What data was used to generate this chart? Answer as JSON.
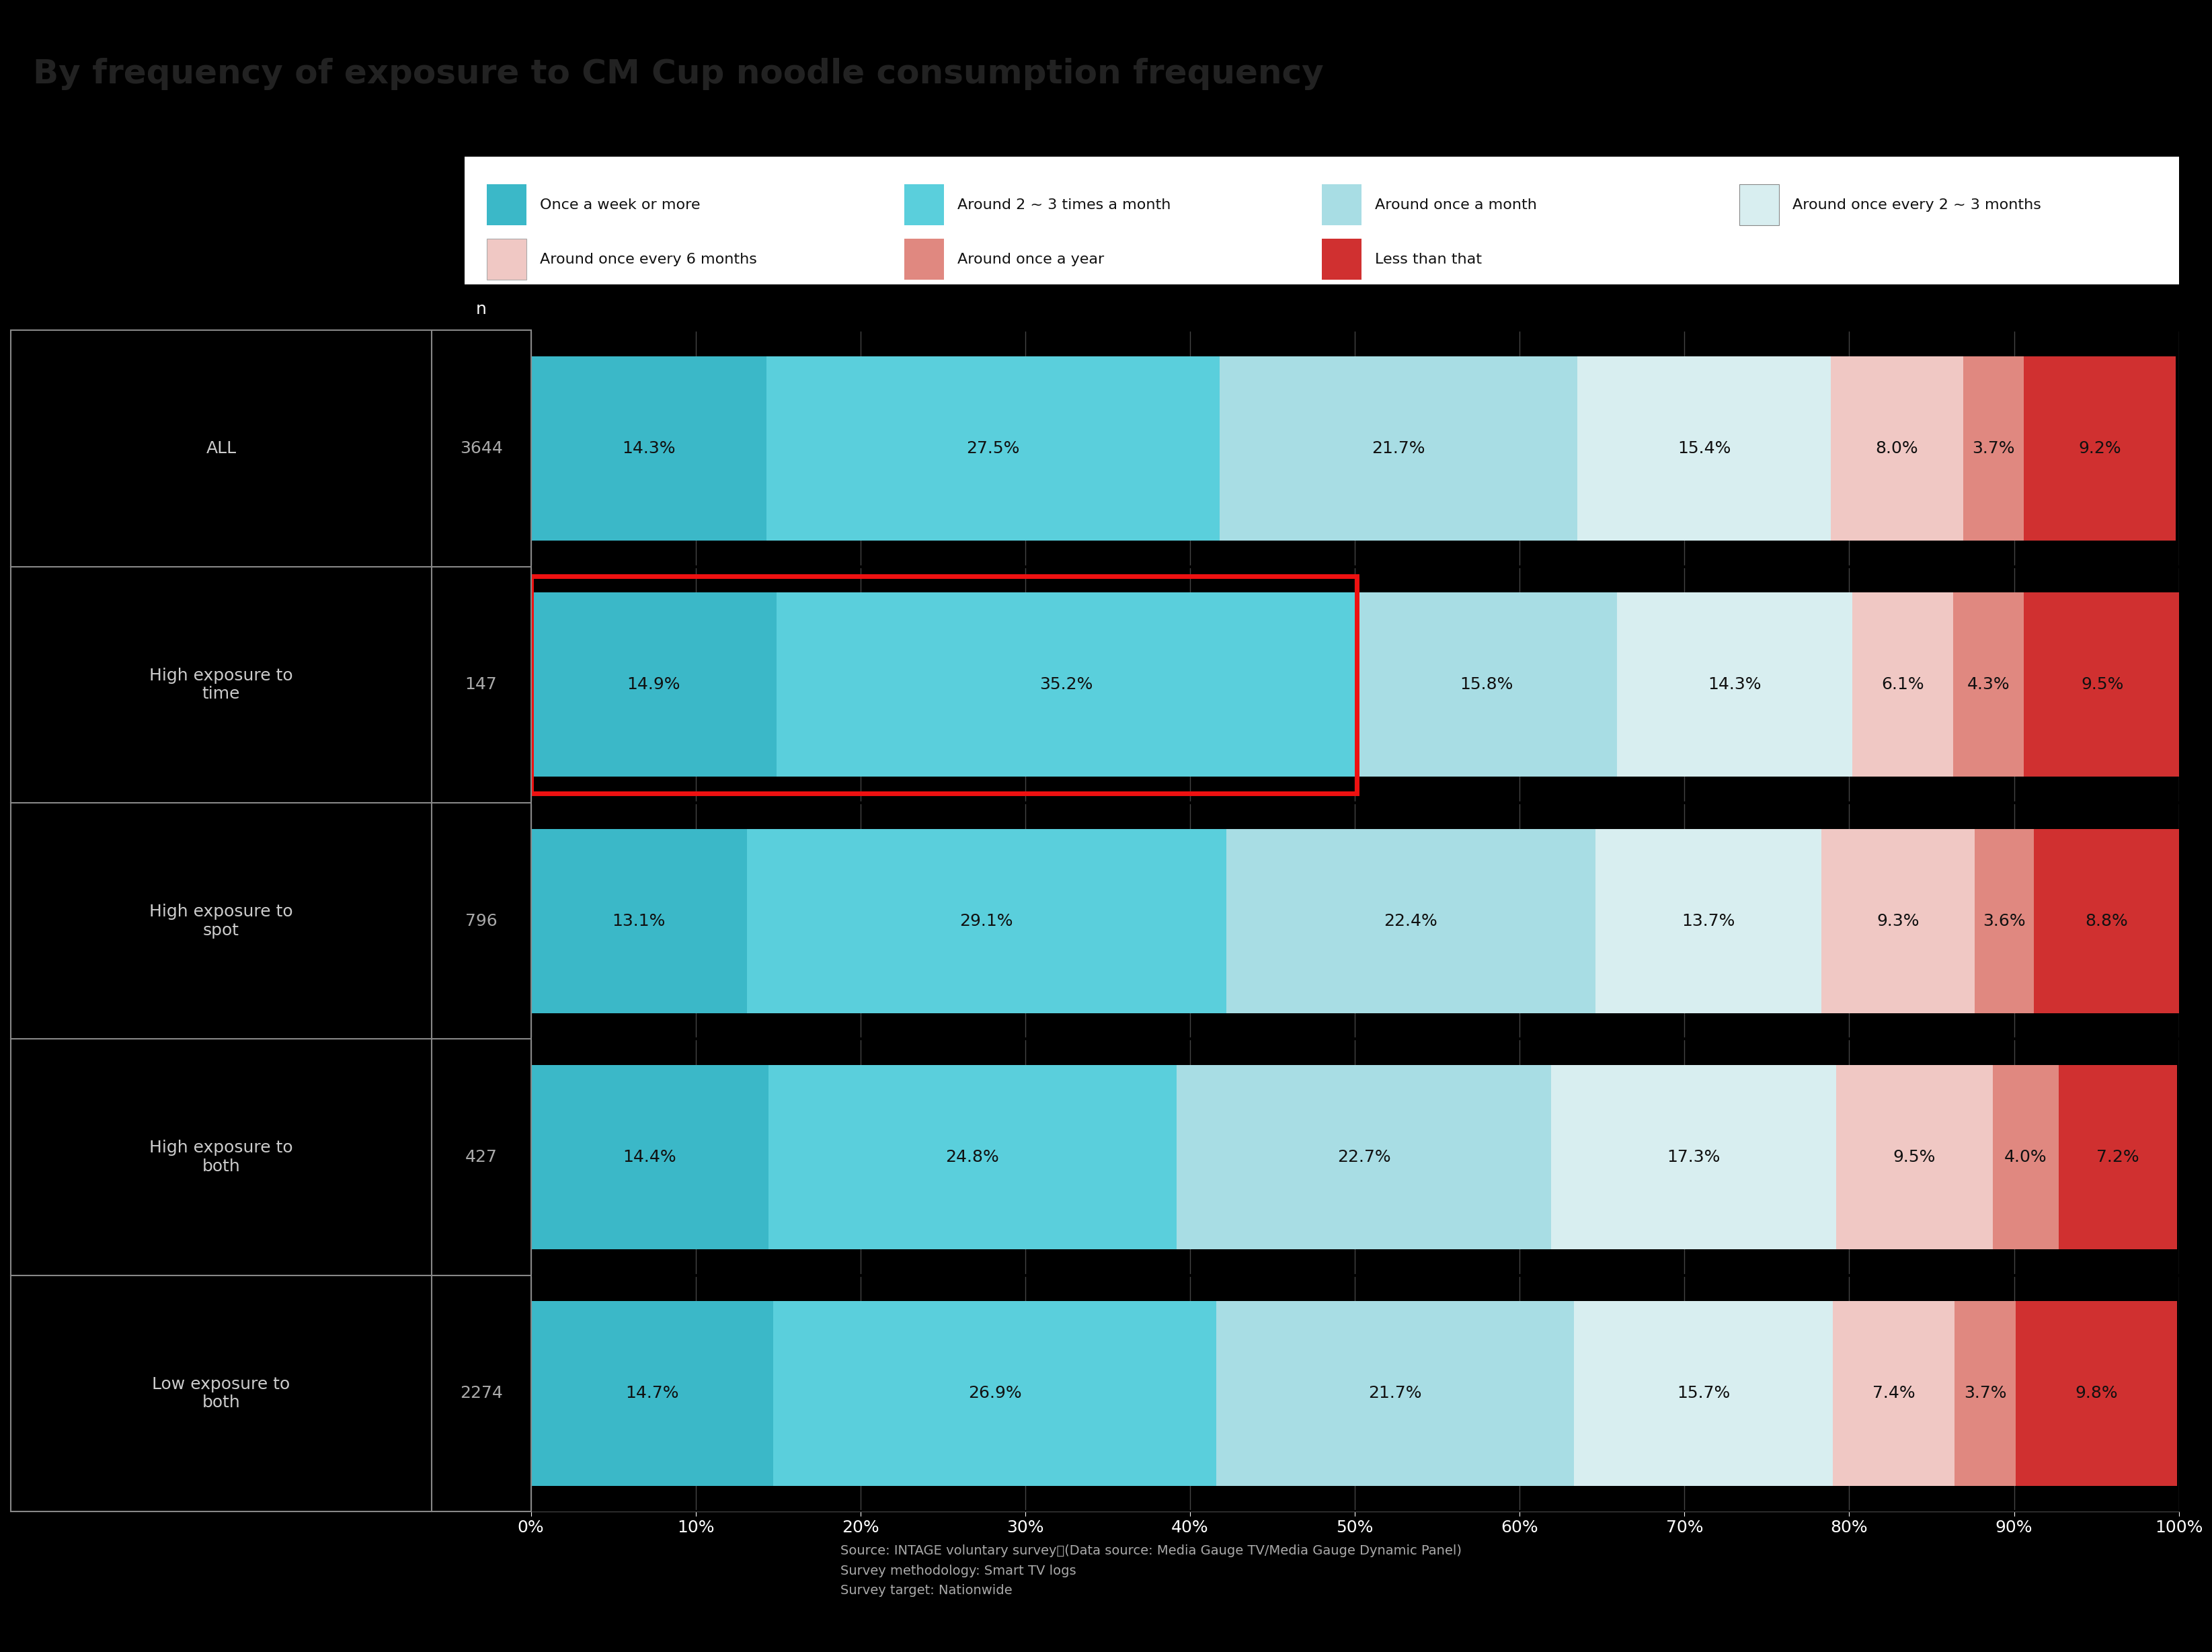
{
  "title": "By frequency of exposure to CM Cup noodle consumption frequency",
  "title_fontsize": 36,
  "title_color": "#222222",
  "background_color": "#000000",
  "categories": [
    "ALL",
    "High exposure to\ntime",
    "High exposure to\nspot",
    "High exposure to\nboth",
    "Low exposure to\nboth"
  ],
  "n_values": [
    3644,
    147,
    796,
    427,
    2274
  ],
  "segments": [
    "Once a week or more",
    "Around 2 ~ 3 times a month",
    "Around once a month",
    "Around once every 2 ~ 3 months",
    "Around once every 6 months",
    "Around once a year",
    "Less than that"
  ],
  "colors": [
    "#3BB8C8",
    "#5ACFDC",
    "#A8DDE4",
    "#D8EEF0",
    "#F0C8C4",
    "#E08880",
    "#D03030"
  ],
  "data": [
    [
      14.3,
      27.5,
      21.7,
      15.4,
      8.0,
      3.7,
      9.2
    ],
    [
      14.9,
      35.2,
      15.8,
      14.3,
      6.1,
      4.3,
      9.5
    ],
    [
      13.1,
      29.1,
      22.4,
      13.7,
      9.3,
      3.6,
      8.8
    ],
    [
      14.4,
      24.8,
      22.7,
      17.3,
      9.5,
      4.0,
      7.2
    ],
    [
      14.7,
      26.9,
      21.7,
      15.7,
      7.4,
      3.7,
      9.8
    ]
  ],
  "highlight_row": 1,
  "highlight_color": "#EE1111",
  "footer_text": "Source: INTAGE voluntary survey　(Data source: Media Gauge TV/Media Gauge Dynamic Panel)\nSurvey methodology: Smart TV logs\nSurvey target: Nationwide",
  "legend_bg": "#ffffff",
  "legend_text_color": "#111111",
  "bar_label_color": "#111111",
  "label_text_color": "#cccccc",
  "n_text_color": "#aaaaaa",
  "grid_color": "#444444",
  "border_color": "#888888",
  "bar_height": 0.78
}
